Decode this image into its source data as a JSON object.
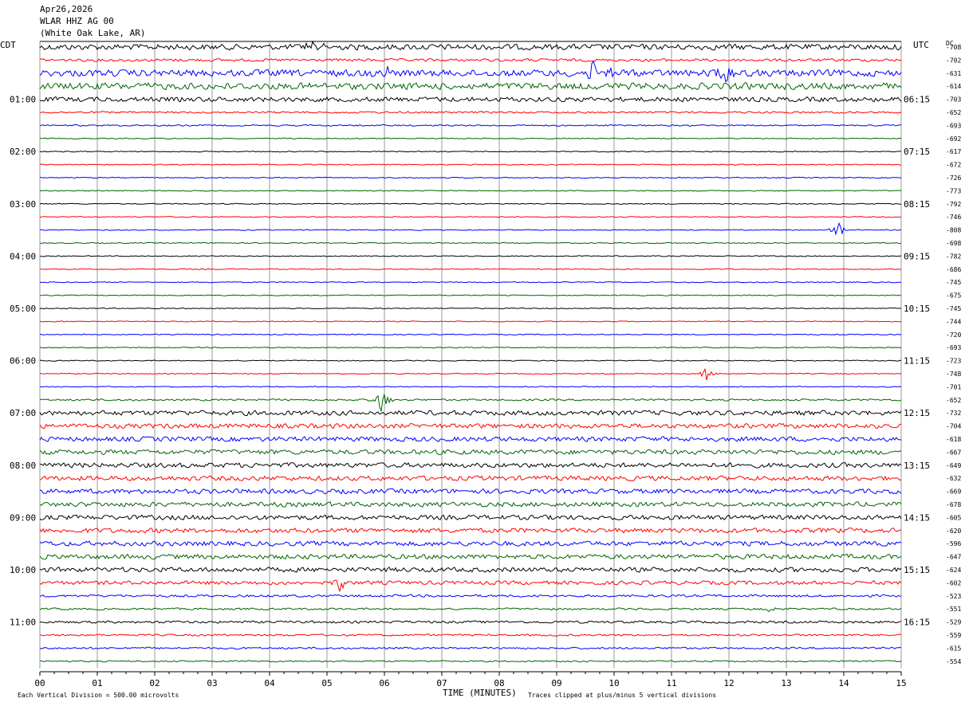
{
  "header": {
    "date": "Apr26,2026",
    "station": "WLAR HHZ AG 00",
    "location": "(White Oak Lake, AR)"
  },
  "left_zone_label": "CDT",
  "right_zone_label": "UTC",
  "dc_header": "DC",
  "x_axis_title": "TIME (MINUTES)",
  "footer_left": "Each Vertical Division =  500.00 microvolts",
  "footer_right": "Traces clipped at plus/minus 5 vertical divisions",
  "colors": {
    "trace_cycle": [
      "#000000",
      "#ff0000",
      "#0000ff",
      "#006400"
    ],
    "gridline": "#555555"
  },
  "chart_data": {
    "type": "line",
    "subtype": "helicorder",
    "xlabel": "TIME (MINUTES)",
    "xlim": [
      0,
      15
    ],
    "x_ticks": [
      "00",
      "01",
      "02",
      "03",
      "04",
      "05",
      "06",
      "07",
      "08",
      "09",
      "10",
      "11",
      "12",
      "13",
      "14",
      "15"
    ],
    "left_hour_labels": [
      "01:00",
      "02:00",
      "03:00",
      "04:00",
      "05:00",
      "06:00",
      "07:00",
      "08:00",
      "09:00",
      "10:00",
      "11:00"
    ],
    "right_hour_labels": [
      "06:15",
      "07:15",
      "08:15",
      "09:15",
      "10:15",
      "11:15",
      "12:15",
      "13:15",
      "14:15",
      "15:15",
      "16:15"
    ],
    "dc_offsets": [
      -708,
      -702,
      -631,
      -614,
      -703,
      -652,
      -693,
      -692,
      -617,
      -672,
      -726,
      -773,
      -792,
      -746,
      -808,
      -698,
      -782,
      -686,
      -745,
      -675,
      -745,
      -744,
      -720,
      -693,
      -723,
      -748,
      -701,
      -652,
      -732,
      -704,
      -618,
      -667,
      -649,
      -632,
      -669,
      -678,
      -605,
      -620,
      -596,
      -647,
      -624,
      -602,
      -523,
      -551,
      -529,
      -559,
      -615,
      -554
    ],
    "trace_amplitude_level": [
      6,
      3,
      7,
      7,
      5,
      2,
      1.5,
      1,
      1,
      1,
      1,
      1,
      1,
      1,
      1,
      1,
      1,
      1,
      1,
      1,
      1,
      1,
      1,
      1,
      1,
      1,
      1,
      2,
      5,
      5,
      5,
      5,
      5,
      5,
      5,
      5,
      5,
      5,
      5,
      5,
      5,
      4,
      2.5,
      2,
      2.5,
      2,
      2,
      1.5
    ],
    "events": [
      {
        "trace": 14,
        "minute": 13.9,
        "amplitude": 3
      },
      {
        "trace": 25,
        "minute": 11.6,
        "amplitude": 3
      },
      {
        "trace": 27,
        "minute": 5.95,
        "amplitude": 5
      },
      {
        "trace": 41,
        "minute": 5.2,
        "amplitude": 4
      },
      {
        "trace": 43,
        "minute": 12.65,
        "amplitude": 2
      },
      {
        "trace": 0,
        "minute": 4.75,
        "amplitude": 5
      },
      {
        "trace": 2,
        "minute": 6.0,
        "amplitude": 5
      },
      {
        "trace": 2,
        "minute": 9.65,
        "amplitude": 5
      },
      {
        "trace": 2,
        "minute": 10.0,
        "amplitude": 5
      },
      {
        "trace": 2,
        "minute": 11.95,
        "amplitude": 5
      }
    ],
    "clip_divisions": 5,
    "units": "microvolts"
  }
}
